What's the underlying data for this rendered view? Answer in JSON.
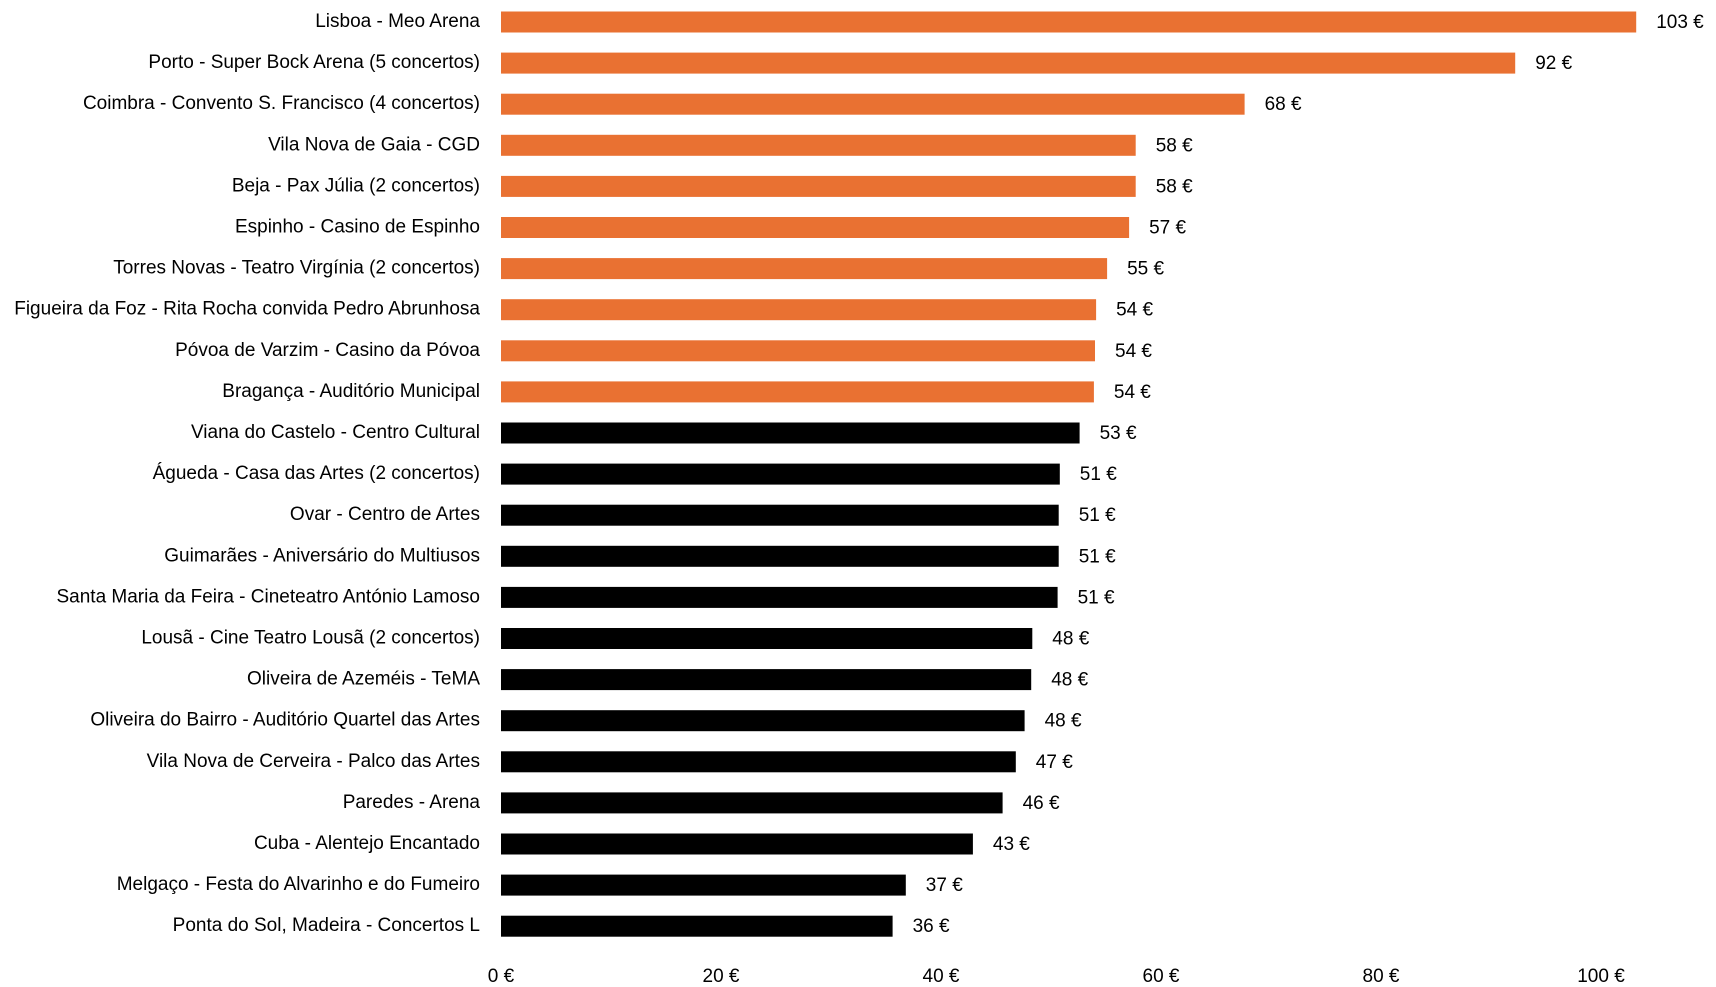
{
  "chart_data": {
    "type": "barh",
    "categories": [
      "Lisboa - Meo Arena",
      "Porto - Super Bock Arena (5 concertos)",
      "Coimbra - Convento S. Francisco (4 concertos)",
      "Vila Nova de Gaia - CGD",
      "Beja - Pax Júlia (2 concertos)",
      "Espinho - Casino de Espinho",
      "Torres Novas - Teatro Virgínia (2 concertos)",
      "Figueira da Foz - Rita Rocha convida Pedro Abrunhosa",
      "Póvoa de Varzim - Casino da Póvoa",
      "Bragança - Auditório Municipal",
      "Viana do Castelo - Centro Cultural",
      "Águeda - Casa das Artes (2 concertos)",
      "Ovar - Centro de Artes",
      "Guimarães - Aniversário do Multiusos",
      "Santa Maria da Feira - Cineteatro António Lamoso",
      "Lousã - Cine Teatro Lousã (2 concertos)",
      "Oliveira de Azeméis - TeMA",
      "Oliveira do Bairro - Auditório Quartel das Artes",
      "Vila Nova de Cerveira - Palco das Artes",
      "Paredes - Arena",
      "Cuba - Alentejo Encantado",
      "Melgaço - Festa do Alvarinho e do Fumeiro",
      "Ponta do Sol, Madeira - Concertos L"
    ],
    "values": [
      103.2,
      92.2,
      67.6,
      57.7,
      57.7,
      57.1,
      55.1,
      54.1,
      54.0,
      53.9,
      52.6,
      50.8,
      50.7,
      50.7,
      50.6,
      48.3,
      48.2,
      47.6,
      46.8,
      45.6,
      42.9,
      36.8,
      35.6
    ],
    "value_labels": [
      "103 €",
      "92 €",
      "68 €",
      "58 €",
      "58 €",
      "57 €",
      "55 €",
      "54 €",
      "54 €",
      "54 €",
      "53 €",
      "51 €",
      "51 €",
      "51 €",
      "51 €",
      "48 €",
      "48 €",
      "48 €",
      "47 €",
      "46 €",
      "43 €",
      "37 €",
      "36 €"
    ],
    "colors": [
      "#e97132",
      "#e97132",
      "#e97132",
      "#e97132",
      "#e97132",
      "#e97132",
      "#e97132",
      "#e97132",
      "#e97132",
      "#e97132",
      "#000000",
      "#000000",
      "#000000",
      "#000000",
      "#000000",
      "#000000",
      "#000000",
      "#000000",
      "#000000",
      "#000000",
      "#000000",
      "#000000",
      "#000000"
    ],
    "label_colors": [
      "#000000",
      "#000000",
      "#000000",
      "#000000",
      "#000000",
      "#000000",
      "#000000",
      "#000000",
      "#000000",
      "#000000",
      "#a6a6a6",
      "#a6a6a6",
      "#a6a6a6",
      "#a6a6a6",
      "#a6a6a6",
      "#a6a6a6",
      "#a6a6a6",
      "#a6a6a6",
      "#a6a6a6",
      "#a6a6a6",
      "#a6a6a6",
      "#a6a6a6",
      "#a6a6a6"
    ],
    "xlim": [
      0,
      100
    ],
    "xticks": [
      {
        "value": 0,
        "label": "0 €"
      },
      {
        "value": 20,
        "label": "20 €"
      },
      {
        "value": 40,
        "label": "40 €"
      },
      {
        "value": 60,
        "label": "60 €"
      },
      {
        "value": 80,
        "label": "80 €"
      },
      {
        "value": 100,
        "label": "100 €"
      }
    ],
    "grid": false
  }
}
